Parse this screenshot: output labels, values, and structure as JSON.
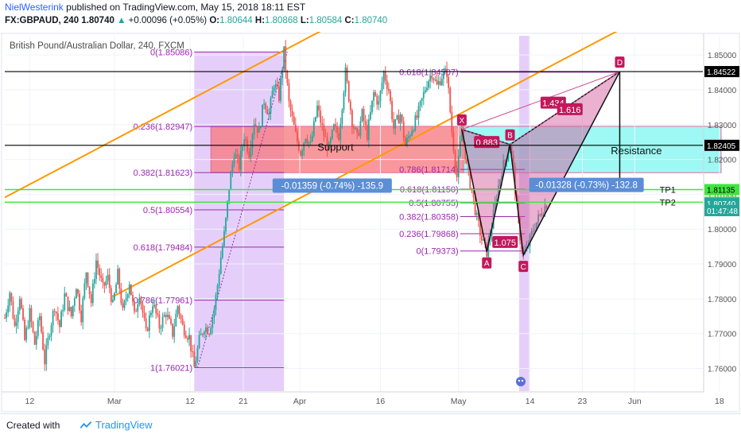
{
  "header": {
    "author": "NielWesterink",
    "published_text": "published on TradingView.com, May 15, 2018 18:11 EST",
    "symbol": "FX:GBPAUD, 240",
    "last": "1.80740",
    "change": "+0.00096 (+0.05%)",
    "o_label": "O:",
    "o_value": "1.80644",
    "h_label": "H:",
    "h_value": "1.80868",
    "l_label": "L:",
    "l_value": "1.80584",
    "c_label": "C:",
    "c_value": "1.80740",
    "chart_title": "British Pound/Australian Dollar, 240, FXCM"
  },
  "footer": {
    "created_with": "Created with",
    "brand": "TradingView"
  },
  "colors": {
    "fib": "#9c27b0",
    "channel": "#ff9800",
    "support_zone": "#f7767b",
    "resistance_zone": "#7ef5f0",
    "pattern": "#d05296",
    "tp_line": "#3fe53f",
    "candle_up": "#26a69a",
    "candle_down": "#ef5350"
  },
  "chart_data": {
    "type": "candlestick",
    "symbol": "GBPAUD",
    "timeframe": "240",
    "ylim": [
      1.7535,
      1.8555
    ],
    "y_ticks": [
      1.76,
      1.77,
      1.78,
      1.79,
      1.8,
      1.81,
      1.82,
      1.83,
      1.84,
      1.85
    ],
    "y_tick_labels": [
      "1.76000",
      "1.77000",
      "1.78000",
      "1.79000",
      "1.80000",
      "1.81000",
      "1.82000",
      "1.83000",
      "1.84000",
      "1.85000"
    ],
    "x_ticks": [
      "12",
      "Mar",
      "12",
      "21",
      "Apr",
      "16",
      "May",
      "14",
      "23",
      "Jun",
      "18"
    ],
    "price_path": [
      [
        0,
        1.7745
      ],
      [
        6,
        1.782
      ],
      [
        12,
        1.772
      ],
      [
        18,
        1.781
      ],
      [
        24,
        1.768
      ],
      [
        30,
        1.776
      ],
      [
        36,
        1.767
      ],
      [
        42,
        1.775
      ],
      [
        48,
        1.762
      ],
      [
        54,
        1.771
      ],
      [
        60,
        1.778
      ],
      [
        66,
        1.772
      ],
      [
        72,
        1.781
      ],
      [
        80,
        1.775
      ],
      [
        86,
        1.784
      ],
      [
        92,
        1.775
      ],
      [
        98,
        1.788
      ],
      [
        104,
        1.779
      ],
      [
        110,
        1.791
      ],
      [
        118,
        1.783
      ],
      [
        124,
        1.786
      ],
      [
        130,
        1.778
      ],
      [
        136,
        1.787
      ],
      [
        142,
        1.776
      ],
      [
        150,
        1.785
      ],
      [
        156,
        1.775
      ],
      [
        162,
        1.782
      ],
      [
        170,
        1.77
      ],
      [
        178,
        1.779
      ],
      [
        186,
        1.772
      ],
      [
        194,
        1.776
      ],
      [
        202,
        1.77
      ],
      [
        208,
        1.778
      ],
      [
        214,
        1.772
      ],
      [
        222,
        1.769
      ],
      [
        228,
        1.7602
      ],
      [
        234,
        1.768
      ],
      [
        240,
        1.772
      ],
      [
        246,
        1.771
      ],
      [
        252,
        1.777
      ],
      [
        256,
        1.784
      ],
      [
        260,
        1.792
      ],
      [
        265,
        1.8
      ],
      [
        270,
        1.812
      ],
      [
        276,
        1.822
      ],
      [
        282,
        1.818
      ],
      [
        288,
        1.827
      ],
      [
        294,
        1.822
      ],
      [
        300,
        1.831
      ],
      [
        306,
        1.828
      ],
      [
        312,
        1.837
      ],
      [
        318,
        1.833
      ],
      [
        324,
        1.842
      ],
      [
        330,
        1.838
      ],
      [
        336,
        1.8509
      ],
      [
        342,
        1.836
      ],
      [
        350,
        1.827
      ],
      [
        356,
        1.822
      ],
      [
        362,
        1.827
      ],
      [
        368,
        1.824
      ],
      [
        376,
        1.835
      ],
      [
        384,
        1.827
      ],
      [
        390,
        1.823
      ],
      [
        396,
        1.829
      ],
      [
        402,
        1.827
      ],
      [
        410,
        1.845
      ],
      [
        418,
        1.831
      ],
      [
        424,
        1.826
      ],
      [
        430,
        1.833
      ],
      [
        436,
        1.827
      ],
      [
        444,
        1.839
      ],
      [
        450,
        1.836
      ],
      [
        456,
        1.845
      ],
      [
        462,
        1.84
      ],
      [
        468,
        1.829
      ],
      [
        476,
        1.833
      ],
      [
        482,
        1.824
      ],
      [
        490,
        1.829
      ],
      [
        496,
        1.832
      ],
      [
        502,
        1.837
      ],
      [
        508,
        1.842
      ],
      [
        514,
        1.845
      ],
      [
        520,
        1.841
      ],
      [
        526,
        1.844
      ],
      [
        532,
        1.8451
      ],
      [
        538,
        1.828
      ],
      [
        544,
        1.815
      ],
      [
        550,
        1.8286
      ],
      [
        556,
        1.818
      ],
      [
        562,
        1.811
      ],
      [
        568,
        1.803
      ],
      [
        574,
        1.797
      ],
      [
        580,
        1.7935
      ],
      [
        586,
        1.801
      ],
      [
        592,
        1.81
      ],
      [
        598,
        1.817
      ],
      [
        604,
        1.821
      ],
      [
        608,
        1.8243
      ],
      [
        612,
        1.817
      ],
      [
        616,
        1.806
      ],
      [
        620,
        1.798
      ],
      [
        624,
        1.7925
      ],
      [
        628,
        1.794
      ],
      [
        632,
        1.797
      ],
      [
        636,
        1.8
      ],
      [
        640,
        1.802
      ],
      [
        646,
        1.805
      ],
      [
        652,
        1.8074
      ]
    ],
    "fib_levels_left": [
      {
        "label": "0(1.85086)",
        "price": 1.85086
      },
      {
        "label": "0.236(1.82947)",
        "price": 1.82947
      },
      {
        "label": "0.382(1.81623)",
        "price": 1.81623
      },
      {
        "label": "0.5(1.80554)",
        "price": 1.80554
      },
      {
        "label": "0.618(1.79484)",
        "price": 1.79484
      },
      {
        "label": "0.786(1.77961)",
        "price": 1.77961
      },
      {
        "label": "1(1.76021)",
        "price": 1.76021
      }
    ],
    "fib_levels_right": [
      {
        "label": "0.618(1.84507)",
        "price": 1.84507
      },
      {
        "label": "0.786(1.81714)",
        "price": 1.81714
      },
      {
        "label": "0.618(1.81150)",
        "price": 1.8115
      },
      {
        "label": "0.5(1.80755)",
        "price": 1.80755
      },
      {
        "label": "0.382(1.80358)",
        "price": 1.80358
      },
      {
        "label": "0.236(1.79868)",
        "price": 1.79868
      },
      {
        "label": "0(1.79373)",
        "price": 1.79373
      }
    ],
    "harmonic_points": [
      {
        "label": "X",
        "price": 1.8286
      },
      {
        "label": "A",
        "price": 1.7935
      },
      {
        "label": "B",
        "price": 1.8243
      },
      {
        "label": "C",
        "price": 1.7925
      },
      {
        "label": "D",
        "price": 1.8452
      }
    ],
    "pattern_ratios": [
      {
        "label": "1.434"
      },
      {
        "label": "1.616"
      },
      {
        "label": "0.883"
      },
      {
        "label": "1.075"
      }
    ],
    "zones": [
      {
        "label": "Support",
        "price_top": 1.8295,
        "price_bottom": 1.8162
      },
      {
        "label": "Resistance",
        "price_top": 1.8295,
        "price_bottom": 1.8162
      }
    ],
    "horizontal_lines": [
      {
        "price": 1.84522,
        "label": "1.84522"
      },
      {
        "price": 1.82405,
        "label": "1.82405"
      }
    ],
    "take_profit": [
      {
        "label": "TP1",
        "price": 1.81135
      },
      {
        "label": "TP2",
        "price": 1.80771
      }
    ],
    "measure_labels": [
      "-0.01359 (-0.74%) -135.9",
      "-0.01328 (-0.73%) -132.8"
    ],
    "axis_badges": [
      {
        "label": "1.84522",
        "price": 1.84522,
        "kind": "line"
      },
      {
        "label": "1.82405",
        "price": 1.82405,
        "kind": "line"
      },
      {
        "label": "1.81135",
        "price": 1.81135,
        "kind": "tp"
      },
      {
        "label": "1.80771",
        "price": 1.80771,
        "kind": "tp"
      },
      {
        "label": "1.80740",
        "price": 1.8074,
        "kind": "last"
      },
      {
        "label": "01:47:48",
        "price": 1.8053,
        "kind": "time"
      }
    ]
  }
}
